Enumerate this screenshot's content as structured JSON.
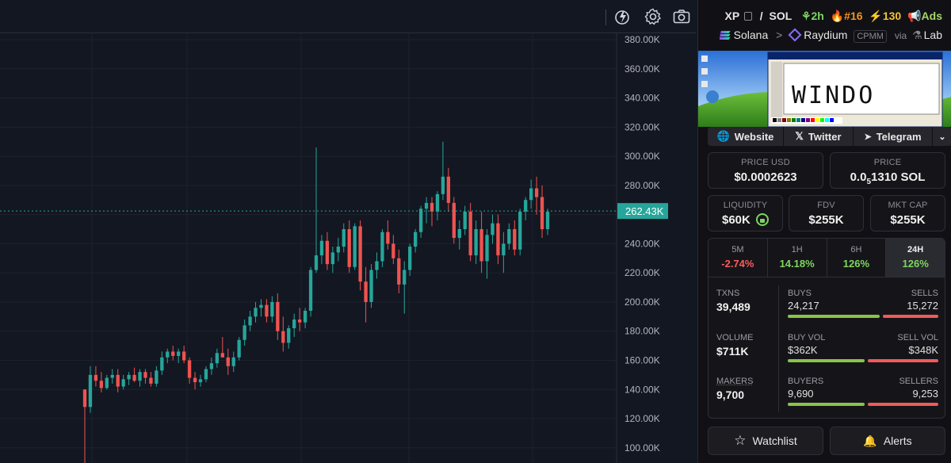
{
  "pair": {
    "base": "XP",
    "separator": "/",
    "quote": "SOL",
    "age": "2h",
    "rank": "#16",
    "boosts": "130",
    "ads_label": "Ads",
    "chain": "Solana",
    "path_sep": ">",
    "dex": "Raydium",
    "pool_type": "CPMM",
    "via": "via",
    "via_source": "Lab"
  },
  "banner": {
    "text": "WINDO"
  },
  "links": {
    "website": "Website",
    "twitter": "Twitter",
    "telegram": "Telegram"
  },
  "price": {
    "usd_label": "PRICE USD",
    "usd_value": "$0.0002623",
    "native_label": "PRICE",
    "native_prefix": "0.0",
    "native_sub": "5",
    "native_suffix": "1310 SOL"
  },
  "metrics": {
    "liquidity_label": "LIQUIDITY",
    "liquidity_value": "$60K",
    "fdv_label": "FDV",
    "fdv_value": "$255K",
    "mcap_label": "MKT CAP",
    "mcap_value": "$255K"
  },
  "timeframes": [
    {
      "label": "5M",
      "change": "-2.74%"
    },
    {
      "label": "1H",
      "change": "14.18%"
    },
    {
      "label": "6H",
      "change": "126%"
    },
    {
      "label": "24H",
      "change": "126%"
    }
  ],
  "stats": {
    "txns_label": "TXNS",
    "txns_value": "39,489",
    "volume_label": "VOLUME",
    "volume_value": "$711K",
    "makers_label": "MAKERS",
    "makers_value": "9,700",
    "buys_label": "BUYS",
    "buys_value": "24,217",
    "sells_label": "SELLS",
    "sells_value": "15,272",
    "buyvol_label": "BUY VOL",
    "buyvol_value": "$362K",
    "sellvol_label": "SELL VOL",
    "sellvol_value": "$348K",
    "buyers_label": "BUYERS",
    "buyers_value": "9,690",
    "sellers_label": "SELLERS",
    "sellers_value": "9,253",
    "buys_ratio": 0.613,
    "buyvol_ratio": 0.51,
    "buyers_ratio": 0.512
  },
  "actions": {
    "watchlist": "Watchlist",
    "alerts": "Alerts"
  },
  "colors": {
    "up": "#26a69a",
    "down": "#ef5350",
    "price_tag": "#26a69a",
    "buy_bar": "#8bc34a",
    "sell_bar": "#f05a5a"
  },
  "chart_data": {
    "type": "candlestick",
    "y_ticks": [
      "380.00K",
      "360.00K",
      "340.00K",
      "320.00K",
      "300.00K",
      "280.00K",
      "260.00K",
      "240.00K",
      "220.00K",
      "200.00K",
      "180.00K",
      "160.00K",
      "140.00K",
      "120.00K",
      "100.00K"
    ],
    "ylim": [
      95,
      380
    ],
    "last_price_label": "262.43K",
    "last_price": 262.43,
    "ohlc": [
      [
        140,
        140,
        88,
        128
      ],
      [
        128,
        156,
        124,
        150
      ],
      [
        150,
        156,
        142,
        146
      ],
      [
        146,
        152,
        138,
        141
      ],
      [
        141,
        150,
        140,
        148
      ],
      [
        148,
        154,
        144,
        150
      ],
      [
        150,
        154,
        138,
        142
      ],
      [
        142,
        150,
        140,
        147
      ],
      [
        147,
        152,
        143,
        150
      ],
      [
        150,
        155,
        145,
        146
      ],
      [
        146,
        154,
        142,
        152
      ],
      [
        152,
        154,
        144,
        148
      ],
      [
        148,
        152,
        142,
        144
      ],
      [
        144,
        156,
        142,
        153
      ],
      [
        153,
        166,
        150,
        162
      ],
      [
        162,
        168,
        158,
        166
      ],
      [
        166,
        170,
        160,
        163
      ],
      [
        163,
        168,
        158,
        166
      ],
      [
        166,
        170,
        158,
        160
      ],
      [
        160,
        162,
        144,
        148
      ],
      [
        148,
        152,
        140,
        145
      ],
      [
        145,
        150,
        142,
        147
      ],
      [
        147,
        156,
        145,
        154
      ],
      [
        154,
        162,
        150,
        158
      ],
      [
        158,
        168,
        155,
        165
      ],
      [
        165,
        176,
        162,
        162
      ],
      [
        162,
        168,
        150,
        156
      ],
      [
        156,
        166,
        152,
        162
      ],
      [
        162,
        176,
        160,
        174
      ],
      [
        174,
        188,
        170,
        184
      ],
      [
        184,
        194,
        180,
        190
      ],
      [
        190,
        200,
        186,
        196
      ],
      [
        196,
        202,
        190,
        198
      ],
      [
        198,
        202,
        186,
        190
      ],
      [
        190,
        204,
        186,
        200
      ],
      [
        200,
        206,
        174,
        180
      ],
      [
        180,
        190,
        166,
        172
      ],
      [
        172,
        184,
        168,
        182
      ],
      [
        182,
        192,
        176,
        188
      ],
      [
        188,
        196,
        180,
        186
      ],
      [
        186,
        196,
        182,
        194
      ],
      [
        194,
        224,
        190,
        222
      ],
      [
        222,
        306,
        220,
        232
      ],
      [
        232,
        246,
        226,
        242
      ],
      [
        242,
        248,
        222,
        226
      ],
      [
        226,
        238,
        220,
        234
      ],
      [
        234,
        244,
        228,
        238
      ],
      [
        238,
        254,
        234,
        250
      ],
      [
        250,
        256,
        220,
        224
      ],
      [
        224,
        254,
        222,
        252
      ],
      [
        252,
        256,
        208,
        214
      ],
      [
        214,
        224,
        186,
        200
      ],
      [
        200,
        226,
        196,
        222
      ],
      [
        222,
        234,
        216,
        228
      ],
      [
        228,
        250,
        224,
        248
      ],
      [
        248,
        256,
        236,
        240
      ],
      [
        240,
        246,
        226,
        230
      ],
      [
        230,
        236,
        206,
        212
      ],
      [
        212,
        228,
        192,
        222
      ],
      [
        222,
        240,
        218,
        238
      ],
      [
        238,
        250,
        234,
        248
      ],
      [
        248,
        266,
        244,
        264
      ],
      [
        264,
        272,
        254,
        268
      ],
      [
        268,
        272,
        252,
        262
      ],
      [
        262,
        276,
        256,
        274
      ],
      [
        274,
        310,
        270,
        286
      ],
      [
        286,
        292,
        262,
        268
      ],
      [
        268,
        272,
        240,
        244
      ],
      [
        244,
        256,
        236,
        250
      ],
      [
        250,
        266,
        246,
        262
      ],
      [
        262,
        268,
        228,
        232
      ],
      [
        232,
        256,
        226,
        250
      ],
      [
        250,
        262,
        220,
        228
      ],
      [
        228,
        250,
        216,
        246
      ],
      [
        246,
        260,
        240,
        254
      ],
      [
        254,
        260,
        226,
        232
      ],
      [
        232,
        248,
        220,
        240
      ],
      [
        240,
        254,
        236,
        250
      ],
      [
        250,
        256,
        232,
        236
      ],
      [
        236,
        264,
        232,
        262
      ],
      [
        262,
        272,
        256,
        270
      ],
      [
        270,
        284,
        264,
        278
      ],
      [
        278,
        286,
        260,
        272
      ],
      [
        272,
        280,
        244,
        250
      ],
      [
        250,
        264,
        246,
        262
      ]
    ]
  }
}
